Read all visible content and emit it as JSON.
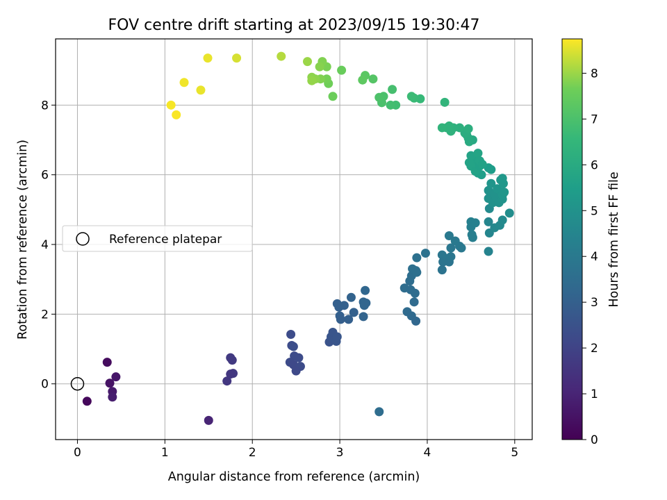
{
  "chart_data": {
    "type": "scatter",
    "title": "FOV centre drift starting at 2023/09/15 19:30:47",
    "xlabel": "Angular distance from reference (arcmin)",
    "ylabel": "Rotation from reference (arcmin)",
    "xlim": [
      -0.25,
      5.2
    ],
    "ylim": [
      -1.6,
      9.9
    ],
    "xticks": [
      0,
      1,
      2,
      3,
      4,
      5
    ],
    "yticks": [
      0,
      2,
      4,
      6,
      8
    ],
    "grid": true,
    "legend": {
      "position": "center-left",
      "entries": [
        "Reference platepar"
      ]
    },
    "reference_point": {
      "x": 0,
      "y": 0,
      "label": "Reference platepar"
    },
    "colorbar": {
      "label": "Hours from first FF file",
      "colormap": "viridis",
      "range": [
        0,
        8.75
      ],
      "ticks": [
        0,
        1,
        2,
        3,
        4,
        5,
        6,
        7,
        8
      ]
    },
    "series": [
      {
        "points": [
          {
            "x": 0.34,
            "y": 0.62,
            "h": 0.3
          },
          {
            "x": 0.11,
            "y": -0.5,
            "h": 0.2
          },
          {
            "x": 0.37,
            "y": 0.02,
            "h": 0.5
          },
          {
            "x": 0.44,
            "y": 0.2,
            "h": 0.6
          },
          {
            "x": 0.4,
            "y": -0.22,
            "h": 0.7
          },
          {
            "x": 0.4,
            "y": -0.38,
            "h": 0.8
          },
          {
            "x": 1.5,
            "y": -1.05,
            "h": 1.0
          },
          {
            "x": 1.71,
            "y": 0.08,
            "h": 1.6
          },
          {
            "x": 1.75,
            "y": 0.75,
            "h": 1.7
          },
          {
            "x": 1.77,
            "y": 0.68,
            "h": 1.7
          },
          {
            "x": 1.78,
            "y": 0.3,
            "h": 1.65
          },
          {
            "x": 1.75,
            "y": 0.28,
            "h": 1.6
          },
          {
            "x": 2.44,
            "y": 1.42,
            "h": 2.3
          },
          {
            "x": 2.45,
            "y": 1.1,
            "h": 2.3
          },
          {
            "x": 2.47,
            "y": 1.07,
            "h": 2.35
          },
          {
            "x": 2.48,
            "y": 0.8,
            "h": 2.3
          },
          {
            "x": 2.53,
            "y": 0.75,
            "h": 2.3
          },
          {
            "x": 2.43,
            "y": 0.62,
            "h": 2.25
          },
          {
            "x": 2.47,
            "y": 0.55,
            "h": 2.2
          },
          {
            "x": 2.55,
            "y": 0.5,
            "h": 2.25
          },
          {
            "x": 2.5,
            "y": 0.37,
            "h": 2.2
          },
          {
            "x": 2.88,
            "y": 1.2,
            "h": 2.55
          },
          {
            "x": 2.9,
            "y": 1.35,
            "h": 2.6
          },
          {
            "x": 2.92,
            "y": 1.48,
            "h": 2.6
          },
          {
            "x": 2.96,
            "y": 1.22,
            "h": 2.6
          },
          {
            "x": 2.97,
            "y": 1.35,
            "h": 2.65
          },
          {
            "x": 2.97,
            "y": 2.3,
            "h": 3.0
          },
          {
            "x": 2.99,
            "y": 2.2,
            "h": 3.0
          },
          {
            "x": 3.0,
            "y": 1.95,
            "h": 3.0
          },
          {
            "x": 3.01,
            "y": 1.85,
            "h": 2.95
          },
          {
            "x": 3.05,
            "y": 2.25,
            "h": 3.05
          },
          {
            "x": 3.1,
            "y": 1.85,
            "h": 3.0
          },
          {
            "x": 3.13,
            "y": 2.48,
            "h": 3.1
          },
          {
            "x": 3.16,
            "y": 2.05,
            "h": 3.05
          },
          {
            "x": 3.27,
            "y": 1.93,
            "h": 3.15
          },
          {
            "x": 3.27,
            "y": 2.35,
            "h": 3.2
          },
          {
            "x": 3.28,
            "y": 2.25,
            "h": 3.2
          },
          {
            "x": 3.3,
            "y": 2.32,
            "h": 3.2
          },
          {
            "x": 3.29,
            "y": 2.68,
            "h": 3.25
          },
          {
            "x": 3.45,
            "y": -0.8,
            "h": 3.5
          },
          {
            "x": 3.74,
            "y": 2.75,
            "h": 3.5
          },
          {
            "x": 3.77,
            "y": 2.07,
            "h": 3.4
          },
          {
            "x": 3.8,
            "y": 2.95,
            "h": 3.5
          },
          {
            "x": 3.81,
            "y": 2.7,
            "h": 3.45
          },
          {
            "x": 3.82,
            "y": 3.1,
            "h": 3.55
          },
          {
            "x": 3.82,
            "y": 1.95,
            "h": 3.35
          },
          {
            "x": 3.83,
            "y": 3.3,
            "h": 3.6
          },
          {
            "x": 3.85,
            "y": 2.35,
            "h": 3.4
          },
          {
            "x": 3.86,
            "y": 2.6,
            "h": 3.45
          },
          {
            "x": 3.87,
            "y": 3.25,
            "h": 3.6
          },
          {
            "x": 3.88,
            "y": 3.2,
            "h": 3.6
          },
          {
            "x": 3.87,
            "y": 1.8,
            "h": 3.3
          },
          {
            "x": 3.88,
            "y": 3.62,
            "h": 3.65
          },
          {
            "x": 3.98,
            "y": 3.75,
            "h": 3.7
          },
          {
            "x": 4.17,
            "y": 3.7,
            "h": 3.85
          },
          {
            "x": 4.18,
            "y": 3.5,
            "h": 3.8
          },
          {
            "x": 4.17,
            "y": 3.27,
            "h": 3.75
          },
          {
            "x": 4.23,
            "y": 3.6,
            "h": 3.85
          },
          {
            "x": 4.25,
            "y": 4.25,
            "h": 4.0
          },
          {
            "x": 4.25,
            "y": 3.5,
            "h": 3.8
          },
          {
            "x": 4.27,
            "y": 3.9,
            "h": 3.9
          },
          {
            "x": 4.27,
            "y": 3.65,
            "h": 3.85
          },
          {
            "x": 4.32,
            "y": 4.1,
            "h": 4.0
          },
          {
            "x": 4.37,
            "y": 3.95,
            "h": 3.95
          },
          {
            "x": 4.39,
            "y": 3.9,
            "h": 3.95
          },
          {
            "x": 4.5,
            "y": 4.65,
            "h": 4.3
          },
          {
            "x": 4.5,
            "y": 4.5,
            "h": 4.25
          },
          {
            "x": 4.51,
            "y": 4.28,
            "h": 4.2
          },
          {
            "x": 4.52,
            "y": 4.2,
            "h": 4.2
          },
          {
            "x": 4.55,
            "y": 4.62,
            "h": 4.3
          },
          {
            "x": 4.7,
            "y": 3.8,
            "h": 4.4
          },
          {
            "x": 4.7,
            "y": 4.65,
            "h": 4.5
          },
          {
            "x": 4.71,
            "y": 4.33,
            "h": 4.5
          },
          {
            "x": 4.71,
            "y": 5.03,
            "h": 4.7
          },
          {
            "x": 4.77,
            "y": 4.48,
            "h": 4.6
          },
          {
            "x": 4.83,
            "y": 4.55,
            "h": 4.65
          },
          {
            "x": 4.86,
            "y": 4.7,
            "h": 4.7
          },
          {
            "x": 4.94,
            "y": 4.9,
            "h": 4.8
          },
          {
            "x": 4.7,
            "y": 5.55,
            "h": 5.0
          },
          {
            "x": 4.7,
            "y": 5.32,
            "h": 4.95
          },
          {
            "x": 4.73,
            "y": 5.75,
            "h": 5.1
          },
          {
            "x": 4.75,
            "y": 5.2,
            "h": 4.95
          },
          {
            "x": 4.77,
            "y": 5.45,
            "h": 5.0
          },
          {
            "x": 4.79,
            "y": 5.35,
            "h": 5.0
          },
          {
            "x": 4.8,
            "y": 5.6,
            "h": 5.1
          },
          {
            "x": 4.82,
            "y": 5.2,
            "h": 5.0
          },
          {
            "x": 4.84,
            "y": 5.85,
            "h": 5.2
          },
          {
            "x": 4.85,
            "y": 5.5,
            "h": 5.1
          },
          {
            "x": 4.86,
            "y": 5.3,
            "h": 5.05
          },
          {
            "x": 4.86,
            "y": 5.42,
            "h": 5.1
          },
          {
            "x": 4.87,
            "y": 5.75,
            "h": 5.2
          },
          {
            "x": 4.88,
            "y": 5.5,
            "h": 5.15
          },
          {
            "x": 4.86,
            "y": 5.9,
            "h": 5.25
          },
          {
            "x": 4.73,
            "y": 6.15,
            "h": 5.4
          },
          {
            "x": 4.7,
            "y": 6.2,
            "h": 5.45
          },
          {
            "x": 4.62,
            "y": 6.0,
            "h": 5.5
          },
          {
            "x": 4.58,
            "y": 6.05,
            "h": 5.55
          },
          {
            "x": 4.55,
            "y": 6.2,
            "h": 5.6
          },
          {
            "x": 4.55,
            "y": 6.35,
            "h": 5.6
          },
          {
            "x": 4.52,
            "y": 6.45,
            "h": 5.65
          },
          {
            "x": 4.5,
            "y": 6.55,
            "h": 5.7
          },
          {
            "x": 4.48,
            "y": 6.35,
            "h": 5.7
          },
          {
            "x": 4.5,
            "y": 6.25,
            "h": 5.7
          },
          {
            "x": 4.55,
            "y": 6.1,
            "h": 5.65
          },
          {
            "x": 4.6,
            "y": 6.25,
            "h": 5.6
          },
          {
            "x": 4.58,
            "y": 6.62,
            "h": 5.75
          },
          {
            "x": 4.6,
            "y": 6.4,
            "h": 5.7
          },
          {
            "x": 4.63,
            "y": 6.3,
            "h": 5.65
          },
          {
            "x": 4.52,
            "y": 7.0,
            "h": 5.9
          },
          {
            "x": 4.47,
            "y": 7.05,
            "h": 6.0
          },
          {
            "x": 4.45,
            "y": 7.15,
            "h": 6.05
          },
          {
            "x": 4.43,
            "y": 7.2,
            "h": 6.1
          },
          {
            "x": 4.48,
            "y": 6.95,
            "h": 6.0
          },
          {
            "x": 4.47,
            "y": 7.32,
            "h": 6.15
          },
          {
            "x": 4.37,
            "y": 7.35,
            "h": 6.2
          },
          {
            "x": 4.3,
            "y": 7.35,
            "h": 6.25
          },
          {
            "x": 4.27,
            "y": 7.25,
            "h": 6.3
          },
          {
            "x": 4.25,
            "y": 7.4,
            "h": 6.35
          },
          {
            "x": 4.22,
            "y": 7.35,
            "h": 6.35
          },
          {
            "x": 4.17,
            "y": 7.35,
            "h": 6.4
          },
          {
            "x": 4.2,
            "y": 8.08,
            "h": 6.45
          },
          {
            "x": 3.92,
            "y": 8.18,
            "h": 6.6
          },
          {
            "x": 3.85,
            "y": 8.2,
            "h": 6.65
          },
          {
            "x": 3.82,
            "y": 8.25,
            "h": 6.7
          },
          {
            "x": 3.64,
            "y": 8.0,
            "h": 6.8
          },
          {
            "x": 3.58,
            "y": 8.0,
            "h": 6.85
          },
          {
            "x": 3.6,
            "y": 8.45,
            "h": 6.9
          },
          {
            "x": 3.5,
            "y": 8.25,
            "h": 7.0
          },
          {
            "x": 3.48,
            "y": 8.07,
            "h": 7.0
          },
          {
            "x": 3.45,
            "y": 8.22,
            "h": 7.05
          },
          {
            "x": 3.38,
            "y": 8.75,
            "h": 7.2
          },
          {
            "x": 3.29,
            "y": 8.85,
            "h": 7.3
          },
          {
            "x": 3.26,
            "y": 8.72,
            "h": 7.35
          },
          {
            "x": 3.02,
            "y": 9.0,
            "h": 7.55
          },
          {
            "x": 2.92,
            "y": 8.25,
            "h": 7.6
          },
          {
            "x": 2.87,
            "y": 8.62,
            "h": 7.65
          },
          {
            "x": 2.85,
            "y": 8.75,
            "h": 7.7
          },
          {
            "x": 2.85,
            "y": 9.1,
            "h": 7.75
          },
          {
            "x": 2.8,
            "y": 9.25,
            "h": 7.8
          },
          {
            "x": 2.78,
            "y": 8.75,
            "h": 7.8
          },
          {
            "x": 2.77,
            "y": 9.1,
            "h": 7.85
          },
          {
            "x": 2.72,
            "y": 8.75,
            "h": 7.9
          },
          {
            "x": 2.68,
            "y": 8.8,
            "h": 7.9
          },
          {
            "x": 2.68,
            "y": 8.7,
            "h": 7.95
          },
          {
            "x": 2.63,
            "y": 9.25,
            "h": 8.0
          },
          {
            "x": 2.33,
            "y": 9.4,
            "h": 8.2
          },
          {
            "x": 1.82,
            "y": 9.35,
            "h": 8.45
          },
          {
            "x": 1.49,
            "y": 9.35,
            "h": 8.6
          },
          {
            "x": 1.41,
            "y": 8.43,
            "h": 8.6
          },
          {
            "x": 1.22,
            "y": 8.65,
            "h": 8.65
          },
          {
            "x": 1.07,
            "y": 8.0,
            "h": 8.7
          },
          {
            "x": 1.13,
            "y": 7.72,
            "h": 8.72
          }
        ]
      }
    ]
  }
}
